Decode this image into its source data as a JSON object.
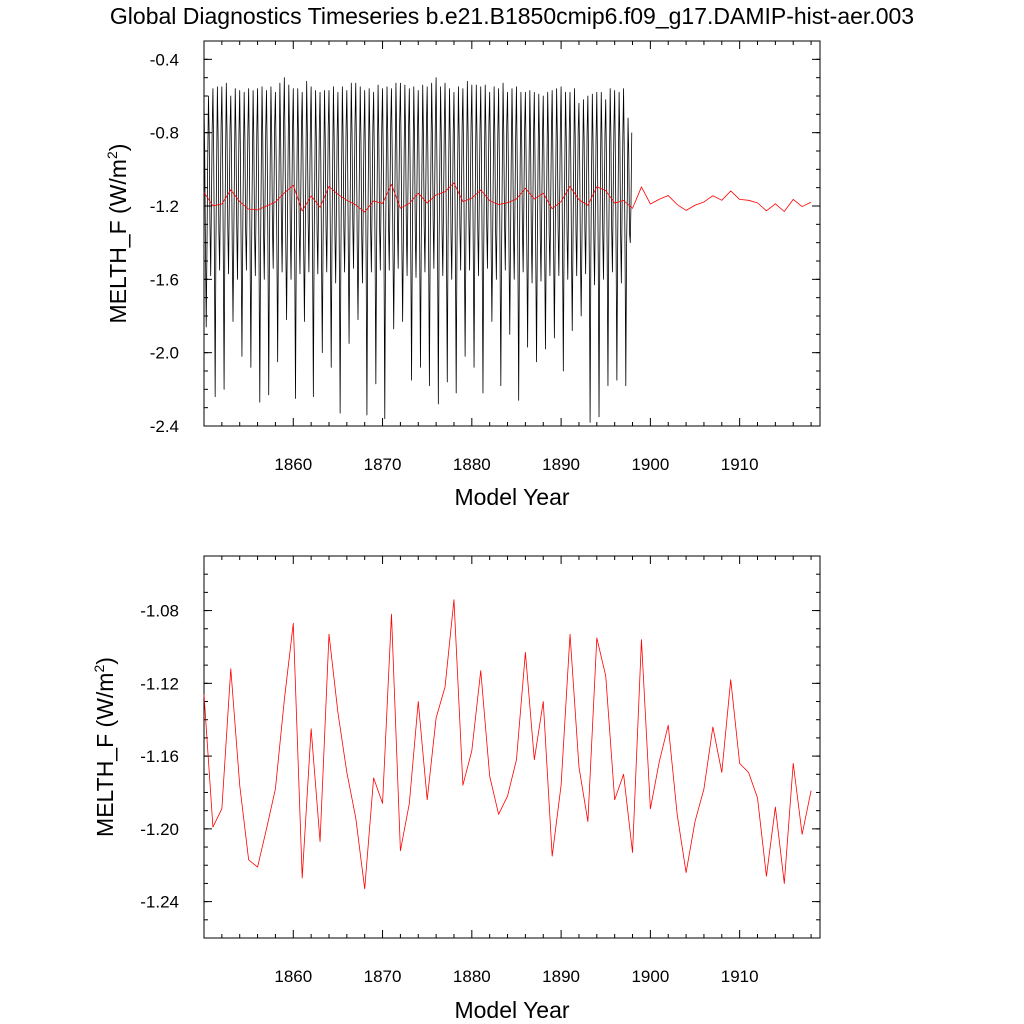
{
  "title": "Global Diagnostics Timeseries b.e21.B1850cmip6.f09_g17.DAMIP-hist-aer.003",
  "colors": {
    "monthly": "#000000",
    "annual": "#ff0000"
  },
  "chart_data": [
    {
      "type": "line",
      "xlabel": "Model Year",
      "ylabel_main": "MELTH_F (W/m",
      "ylabel_sup": "2",
      "ylabel_close": ")",
      "xlim": [
        1850,
        1919
      ],
      "ylim": [
        -2.4,
        -0.3
      ],
      "xticks": [
        1860,
        1870,
        1880,
        1890,
        1900,
        1910
      ],
      "xtick_labels": [
        "1860",
        "1870",
        "1880",
        "1890",
        "1900",
        "1910"
      ],
      "yticks": [
        -0.4,
        -0.8,
        -1.2,
        -1.6,
        -2.0,
        -2.4
      ],
      "ytick_labels": [
        "-0.4",
        "-0.8",
        "-1.2",
        "-1.6",
        "-2.0",
        "-2.4"
      ],
      "series": [
        {
          "color": "#000000",
          "x_start": 1850.0,
          "x_step": 0.08333,
          "values": [
            -0.62,
            -0.93,
            -1.45,
            -1.86,
            -1.42,
            -0.95,
            -0.6,
            -0.82,
            -1.3,
            -1.58,
            -1.18,
            -0.78,
            -0.56,
            -0.9,
            -1.48,
            -2.24,
            -1.42,
            -0.96,
            -0.55,
            -0.83,
            -1.34,
            -1.55,
            -1.16,
            -0.76,
            -0.55,
            -0.92,
            -1.5,
            -2.2,
            -1.4,
            -0.94,
            -0.53,
            -0.81,
            -1.33,
            -1.57,
            -1.18,
            -0.77,
            -0.6,
            -0.93,
            -1.44,
            -1.83,
            -1.39,
            -0.96,
            -0.56,
            -0.82,
            -1.31,
            -1.6,
            -1.19,
            -0.8,
            -0.57,
            -0.94,
            -1.48,
            -2.02,
            -1.41,
            -0.95,
            -0.58,
            -0.84,
            -1.34,
            -1.55,
            -1.15,
            -0.78,
            -0.56,
            -0.93,
            -1.47,
            -2.08,
            -1.42,
            -0.97,
            -0.57,
            -0.84,
            -1.35,
            -1.58,
            -1.2,
            -0.79,
            -0.56,
            -0.95,
            -1.52,
            -2.27,
            -1.45,
            -0.99,
            -0.55,
            -0.83,
            -1.33,
            -1.6,
            -1.2,
            -0.78,
            -0.57,
            -0.92,
            -1.48,
            -2.23,
            -1.43,
            -0.95,
            -0.55,
            -0.82,
            -1.31,
            -1.54,
            -1.16,
            -0.76,
            -0.58,
            -0.93,
            -1.46,
            -2.05,
            -1.4,
            -0.96,
            -0.53,
            -0.81,
            -1.28,
            -1.56,
            -1.14,
            -0.74,
            -0.5,
            -0.89,
            -1.43,
            -1.82,
            -1.38,
            -0.93,
            -0.54,
            -0.82,
            -1.34,
            -1.6,
            -1.2,
            -0.79,
            -0.56,
            -0.95,
            -1.52,
            -2.25,
            -1.45,
            -0.97,
            -0.56,
            -0.83,
            -1.33,
            -1.57,
            -1.18,
            -0.77,
            -0.58,
            -0.92,
            -1.44,
            -1.83,
            -1.4,
            -0.96,
            -0.52,
            -0.81,
            -1.28,
            -1.56,
            -1.15,
            -0.76,
            -0.55,
            -0.94,
            -1.5,
            -2.24,
            -1.44,
            -0.98,
            -0.57,
            -0.83,
            -1.35,
            -1.57,
            -1.17,
            -0.78,
            -0.58,
            -0.94,
            -1.5,
            -2.0,
            -1.42,
            -0.97,
            -0.57,
            -0.84,
            -1.32,
            -1.56,
            -1.18,
            -0.77,
            -0.57,
            -0.93,
            -1.47,
            -2.08,
            -1.41,
            -0.95,
            -0.55,
            -0.84,
            -1.36,
            -1.62,
            -1.21,
            -0.8,
            -0.58,
            -0.96,
            -1.55,
            -2.33,
            -1.47,
            -0.98,
            -0.55,
            -0.83,
            -1.33,
            -1.56,
            -1.17,
            -0.77,
            -0.57,
            -0.91,
            -1.45,
            -1.95,
            -1.39,
            -0.94,
            -0.53,
            -0.8,
            -1.29,
            -1.54,
            -1.14,
            -0.74,
            -0.53,
            -0.9,
            -1.43,
            -1.82,
            -1.39,
            -0.94,
            -0.55,
            -0.84,
            -1.36,
            -1.62,
            -1.22,
            -0.82,
            -0.57,
            -0.95,
            -1.54,
            -2.34,
            -1.46,
            -0.98,
            -0.56,
            -0.83,
            -1.33,
            -1.56,
            -1.17,
            -0.77,
            -0.58,
            -0.94,
            -1.48,
            -2.17,
            -1.43,
            -0.96,
            -0.54,
            -0.83,
            -1.31,
            -1.55,
            -1.16,
            -0.76,
            -0.56,
            -0.95,
            -1.5,
            -2.36,
            -1.45,
            -0.98,
            -0.55,
            -0.82,
            -1.3,
            -1.55,
            -1.15,
            -0.75,
            -0.56,
            -0.92,
            -1.45,
            -1.87,
            -1.41,
            -0.94,
            -0.53,
            -0.8,
            -1.28,
            -1.54,
            -1.14,
            -0.74,
            -0.53,
            -0.9,
            -1.43,
            -1.83,
            -1.38,
            -0.93,
            -0.54,
            -0.82,
            -1.32,
            -1.58,
            -1.18,
            -0.77,
            -0.56,
            -0.95,
            -1.49,
            -2.15,
            -1.43,
            -0.97,
            -0.55,
            -0.84,
            -1.34,
            -1.59,
            -1.19,
            -0.79,
            -0.57,
            -0.93,
            -1.47,
            -2.08,
            -1.41,
            -0.96,
            -0.54,
            -0.82,
            -1.31,
            -1.56,
            -1.15,
            -0.76,
            -0.55,
            -0.94,
            -1.49,
            -2.18,
            -1.44,
            -0.96,
            -0.53,
            -0.8,
            -1.27,
            -1.54,
            -1.14,
            -0.74,
            -0.5,
            -0.91,
            -1.46,
            -2.28,
            -1.43,
            -0.96,
            -0.55,
            -0.83,
            -1.34,
            -1.58,
            -1.19,
            -0.78,
            -0.53,
            -0.92,
            -1.48,
            -2.16,
            -1.41,
            -0.95,
            -0.56,
            -0.84,
            -1.36,
            -1.6,
            -1.22,
            -0.8,
            -0.58,
            -0.95,
            -1.52,
            -2.22,
            -1.45,
            -0.97,
            -0.55,
            -0.82,
            -1.31,
            -1.55,
            -1.16,
            -0.76,
            -0.56,
            -0.92,
            -1.46,
            -2.02,
            -1.42,
            -0.95,
            -0.52,
            -0.8,
            -1.27,
            -1.55,
            -1.14,
            -0.75,
            -0.54,
            -0.93,
            -1.47,
            -2.08,
            -1.42,
            -0.96,
            -0.54,
            -0.83,
            -1.33,
            -1.58,
            -1.18,
            -0.78,
            -0.55,
            -0.95,
            -1.5,
            -2.22,
            -1.44,
            -0.97,
            -0.54,
            -0.81,
            -1.3,
            -1.54,
            -1.15,
            -0.75,
            -0.58,
            -0.91,
            -1.44,
            -1.83,
            -1.39,
            -0.93,
            -0.55,
            -0.84,
            -1.35,
            -1.6,
            -1.2,
            -0.79,
            -0.56,
            -0.94,
            -1.52,
            -2.18,
            -1.44,
            -0.97,
            -0.53,
            -0.82,
            -1.29,
            -1.55,
            -1.15,
            -0.75,
            -0.58,
            -0.92,
            -1.45,
            -1.9,
            -1.4,
            -0.94,
            -0.56,
            -0.84,
            -1.35,
            -1.6,
            -1.21,
            -0.8,
            -0.55,
            -0.95,
            -1.53,
            -2.26,
            -1.46,
            -0.97,
            -0.58,
            -0.83,
            -1.32,
            -1.56,
            -1.18,
            -0.78,
            -0.58,
            -0.94,
            -1.46,
            -1.97,
            -1.41,
            -0.95,
            -0.57,
            -0.84,
            -1.36,
            -1.62,
            -1.22,
            -0.81,
            -0.58,
            -0.96,
            -1.5,
            -2.05,
            -1.43,
            -0.97,
            -0.59,
            -0.86,
            -1.37,
            -1.61,
            -1.22,
            -0.82,
            -0.6,
            -0.95,
            -1.48,
            -1.98,
            -1.42,
            -0.96,
            -0.58,
            -0.84,
            -1.35,
            -1.58,
            -1.2,
            -0.79,
            -0.57,
            -0.93,
            -1.46,
            -1.92,
            -1.41,
            -0.95,
            -0.56,
            -0.83,
            -1.33,
            -1.58,
            -1.19,
            -0.78,
            -0.55,
            -0.93,
            -1.47,
            -2.1,
            -1.42,
            -0.96,
            -0.58,
            -0.84,
            -1.35,
            -1.6,
            -1.2,
            -0.79,
            -0.58,
            -0.93,
            -1.45,
            -1.88,
            -1.4,
            -0.95,
            -0.56,
            -0.83,
            -1.34,
            -1.58,
            -1.18,
            -0.78,
            -0.64,
            -0.96,
            -1.46,
            -1.8,
            -1.4,
            -0.97,
            -0.62,
            -0.85,
            -1.33,
            -1.57,
            -1.18,
            -0.79,
            -0.6,
            -0.97,
            -1.55,
            -2.38,
            -1.48,
            -0.99,
            -0.59,
            -0.86,
            -1.38,
            -1.63,
            -1.23,
            -0.83,
            -0.58,
            -0.95,
            -1.53,
            -2.35,
            -1.46,
            -0.98,
            -0.58,
            -0.84,
            -1.35,
            -1.6,
            -1.21,
            -0.8,
            -0.62,
            -0.95,
            -1.5,
            -2.18,
            -1.44,
            -0.97,
            -0.56,
            -0.83,
            -1.32,
            -1.56,
            -1.16,
            -0.77,
            -0.57,
            -0.94,
            -1.48,
            -2.15,
            -1.43,
            -0.97,
            -0.58,
            -0.84,
            -1.35,
            -1.62,
            -1.22,
            -0.82,
            -0.56,
            -0.94,
            -1.48,
            -2.18,
            -1.43,
            -1.15,
            -0.72,
            -0.92,
            -1.35,
            -1.4,
            -1.18,
            -0.8
          ]
        },
        {
          "color": "#ff0000",
          "x_start": 1850.0,
          "x_step": 1.0,
          "values": [
            -1.126,
            -1.199,
            -1.189,
            -1.112,
            -1.176,
            -1.217,
            -1.221,
            -1.2,
            -1.178,
            -1.129,
            -1.087,
            -1.227,
            -1.145,
            -1.207,
            -1.093,
            -1.136,
            -1.169,
            -1.194,
            -1.233,
            -1.172,
            -1.186,
            -1.082,
            -1.212,
            -1.186,
            -1.13,
            -1.184,
            -1.139,
            -1.122,
            -1.074,
            -1.176,
            -1.157,
            -1.113,
            -1.171,
            -1.192,
            -1.182,
            -1.162,
            -1.103,
            -1.162,
            -1.13,
            -1.215,
            -1.176,
            -1.093,
            -1.166,
            -1.196,
            -1.095,
            -1.116,
            -1.184,
            -1.17,
            -1.213,
            -1.096,
            -1.189,
            -1.163,
            -1.143,
            -1.192,
            -1.224,
            -1.196,
            -1.178,
            -1.144,
            -1.169,
            -1.118,
            -1.164,
            -1.169,
            -1.183,
            -1.226,
            -1.188,
            -1.23,
            -1.164,
            -1.203,
            -1.179
          ]
        }
      ]
    },
    {
      "type": "line",
      "xlabel": "Model Year",
      "ylabel_main": "MELTH_F (W/m",
      "ylabel_sup": "2",
      "ylabel_close": ")",
      "xlim": [
        1850,
        1919
      ],
      "ylim": [
        -1.26,
        -1.05
      ],
      "xticks": [
        1860,
        1870,
        1880,
        1890,
        1900,
        1910
      ],
      "xtick_labels": [
        "1860",
        "1870",
        "1880",
        "1890",
        "1900",
        "1910"
      ],
      "yticks": [
        -1.08,
        -1.12,
        -1.16,
        -1.2,
        -1.24
      ],
      "ytick_labels": [
        "-1.08",
        "-1.12",
        "-1.16",
        "-1.20",
        "-1.24"
      ],
      "series": [
        {
          "color": "#ff0000",
          "x_start": 1850.0,
          "x_step": 1.0,
          "values": [
            -1.126,
            -1.199,
            -1.189,
            -1.112,
            -1.176,
            -1.217,
            -1.221,
            -1.2,
            -1.178,
            -1.129,
            -1.087,
            -1.227,
            -1.145,
            -1.207,
            -1.093,
            -1.136,
            -1.169,
            -1.194,
            -1.233,
            -1.172,
            -1.186,
            -1.082,
            -1.212,
            -1.186,
            -1.13,
            -1.184,
            -1.139,
            -1.122,
            -1.074,
            -1.176,
            -1.157,
            -1.113,
            -1.171,
            -1.192,
            -1.182,
            -1.162,
            -1.103,
            -1.162,
            -1.13,
            -1.215,
            -1.176,
            -1.093,
            -1.166,
            -1.196,
            -1.095,
            -1.116,
            -1.184,
            -1.17,
            -1.213,
            -1.096,
            -1.189,
            -1.163,
            -1.143,
            -1.192,
            -1.224,
            -1.196,
            -1.178,
            -1.144,
            -1.169,
            -1.118,
            -1.164,
            -1.169,
            -1.183,
            -1.226,
            -1.188,
            -1.23,
            -1.164,
            -1.203,
            -1.179
          ]
        }
      ]
    }
  ]
}
